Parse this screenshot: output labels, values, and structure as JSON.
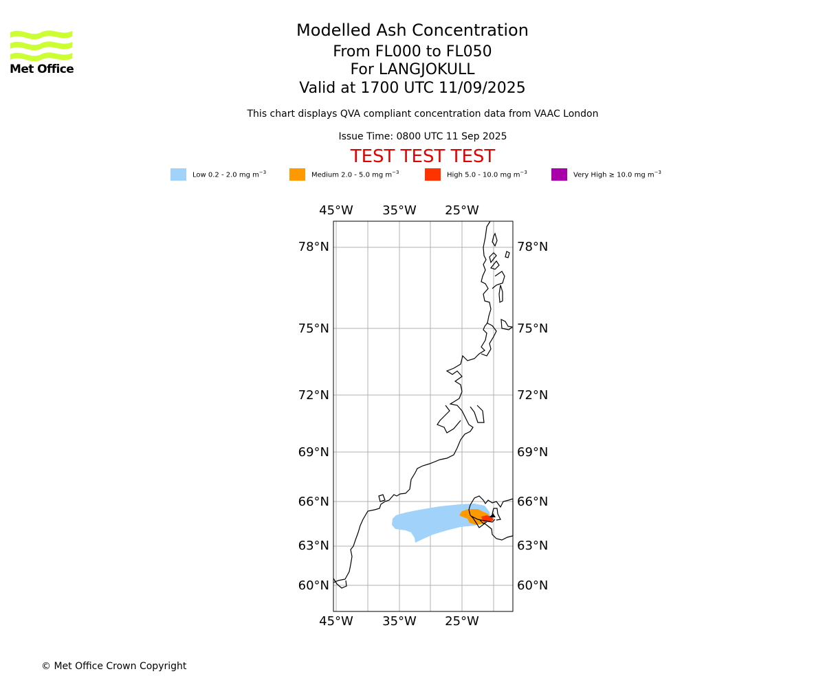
{
  "logo": {
    "text": "Met Office",
    "color": "#ccff33"
  },
  "title": {
    "line1": "Modelled Ash Concentration",
    "line2": "From FL000 to FL050",
    "line3": "For LANGJOKULL",
    "line4": "Valid at 1700 UTC 11/09/2025"
  },
  "subtitle": "This chart displays QVA compliant concentration data from VAAC London",
  "issue_time": "Issue Time: 0800 UTC 11 Sep 2025",
  "test_banner": "TEST TEST TEST",
  "legend": [
    {
      "label": "Low 0.2 - 2.0 mg m",
      "unit_exp": "−3",
      "color": "#a0d2fa"
    },
    {
      "label": "Medium 2.0 - 5.0 mg m",
      "unit_exp": "−3",
      "color": "#ff9900"
    },
    {
      "label": "High 5.0 - 10.0 mg m",
      "unit_exp": "−3",
      "color": "#ff3300"
    },
    {
      "label": "Very High  ≥  10.0 mg m",
      "unit_exp": "−3",
      "color": "#aa00aa"
    }
  ],
  "map": {
    "lon_labels": [
      "45°W",
      "35°W",
      "25°W"
    ],
    "lat_labels": [
      "78°N",
      "75°N",
      "72°N",
      "69°N",
      "66°N",
      "63°N",
      "60°N"
    ]
  },
  "copyright": "© Met Office Crown Copyright"
}
